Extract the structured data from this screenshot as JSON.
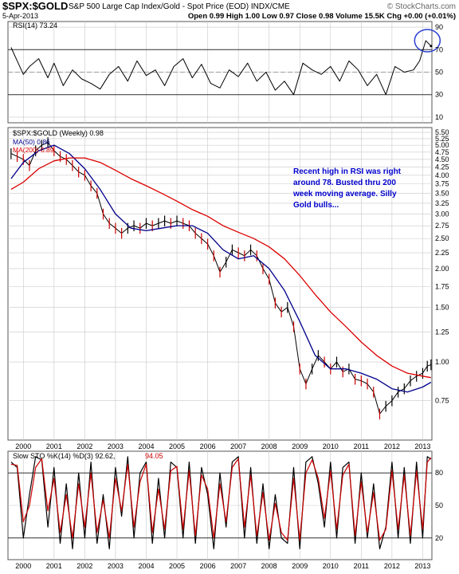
{
  "header": {
    "symbol": "$SPX:$GOLD",
    "description": "S&P 500 Large Cap Index/Gold - Spot Price (EOD) INDX/CME",
    "copyright": "© StockCharts.com",
    "date": "5-Apr-2013",
    "quote": "Open 0.99  High 1.00  Low 0.97  Close 0.98  Volume 15.5K  Chg +0.00 (+0.01%)"
  },
  "colors": {
    "price": "#000000",
    "down": "#cc0000",
    "ma50": "#00008b",
    "ma200": "#dd0000",
    "grid": "#c8c8c8",
    "panel_border": "#555555",
    "annotation": "#0000cc",
    "sto_d": "#cc0000",
    "circle": "#2a3fd0"
  },
  "chart_data": [
    {
      "type": "line",
      "legend": [
        "RSI(14) 73.24"
      ],
      "y_ticks": [
        10,
        30,
        50,
        70,
        90
      ],
      "ylim": [
        5,
        95
      ],
      "reference_lines": [
        30,
        50,
        70
      ],
      "x_range": [
        1999.5,
        2013.3
      ],
      "series": [
        {
          "name": "RSI(14)",
          "x": [
            1999.6,
            1999.8,
            2000.0,
            2000.2,
            2000.5,
            2000.8,
            2001.0,
            2001.3,
            2001.6,
            2001.9,
            2002.2,
            2002.5,
            2002.8,
            2003.1,
            2003.4,
            2003.7,
            2004.0,
            2004.3,
            2004.6,
            2004.9,
            2005.2,
            2005.5,
            2005.8,
            2006.1,
            2006.4,
            2006.7,
            2007.0,
            2007.3,
            2007.6,
            2007.9,
            2008.2,
            2008.5,
            2008.8,
            2009.1,
            2009.4,
            2009.7,
            2010.0,
            2010.3,
            2010.6,
            2010.9,
            2011.2,
            2011.5,
            2011.8,
            2012.1,
            2012.4,
            2012.7,
            2012.9,
            2013.1,
            2013.27
          ],
          "values": [
            72,
            60,
            48,
            55,
            62,
            45,
            58,
            38,
            52,
            44,
            40,
            35,
            48,
            55,
            42,
            60,
            47,
            52,
            38,
            55,
            62,
            45,
            57,
            40,
            36,
            52,
            46,
            58,
            42,
            50,
            34,
            42,
            30,
            58,
            52,
            48,
            55,
            42,
            60,
            52,
            38,
            48,
            30,
            55,
            50,
            52,
            60,
            78,
            73.24
          ]
        }
      ]
    },
    {
      "type": "line",
      "legend": [
        "$SPX:$GOLD (Weekly) 0.98",
        "MA(50) 0.86",
        "MA(200) 0.89"
      ],
      "y_scale": "log",
      "y_ticks": [
        0.75,
        1.0,
        1.25,
        1.5,
        1.75,
        2.0,
        2.25,
        2.5,
        2.75,
        3.0,
        3.25,
        3.5,
        3.75,
        4.0,
        4.25,
        4.5,
        4.75,
        5.0,
        5.25,
        5.5
      ],
      "y_tick_labels": [
        "0.75",
        "1.00",
        "1.25",
        "1.50",
        "1.75",
        "2.00",
        "2.25",
        "2.50",
        "2.75",
        "3.00",
        "3.25",
        "3.50",
        "3.75",
        "4.00",
        "4.25",
        "4.50",
        "4.75",
        "5.00",
        "5.25",
        "5.50"
      ],
      "ylim": [
        0.56,
        5.7
      ],
      "x_range": [
        1999.5,
        2013.3
      ],
      "x_ticks": [
        2000,
        2001,
        2002,
        2003,
        2004,
        2005,
        2006,
        2007,
        2008,
        2009,
        2010,
        2011,
        2012,
        2013
      ],
      "x_tick_labels": [
        "2000",
        "2001",
        "2002",
        "2003",
        "2004",
        "2005",
        "2006",
        "2007",
        "2008",
        "2009",
        "2010",
        "2011",
        "2012",
        "2013"
      ],
      "annotation": "Recent high in RSI was right around 78. Busted thru 200 week moving average. Silly Gold bulls...",
      "series": [
        {
          "name": "$SPX:$GOLD",
          "x": [
            1999.6,
            1999.8,
            2000.0,
            2000.2,
            2000.4,
            2000.6,
            2000.8,
            2001.0,
            2001.2,
            2001.4,
            2001.6,
            2001.8,
            2002.0,
            2002.2,
            2002.4,
            2002.6,
            2002.8,
            2003.0,
            2003.2,
            2003.4,
            2003.6,
            2003.8,
            2004.0,
            2004.2,
            2004.4,
            2004.6,
            2004.8,
            2005.0,
            2005.2,
            2005.4,
            2005.6,
            2005.8,
            2006.0,
            2006.2,
            2006.4,
            2006.6,
            2006.8,
            2007.0,
            2007.2,
            2007.4,
            2007.6,
            2007.8,
            2008.0,
            2008.2,
            2008.4,
            2008.6,
            2008.8,
            2009.0,
            2009.2,
            2009.4,
            2009.6,
            2009.8,
            2010.0,
            2010.2,
            2010.4,
            2010.6,
            2010.8,
            2011.0,
            2011.2,
            2011.4,
            2011.6,
            2011.8,
            2012.0,
            2012.2,
            2012.4,
            2012.6,
            2012.8,
            2013.0,
            2013.15,
            2013.27
          ],
          "values": [
            4.7,
            4.6,
            4.5,
            4.3,
            4.8,
            5.0,
            5.1,
            4.8,
            4.6,
            4.5,
            4.3,
            4.1,
            4.0,
            3.7,
            3.5,
            3.0,
            2.8,
            2.7,
            2.6,
            2.7,
            2.75,
            2.7,
            2.8,
            2.75,
            2.8,
            2.85,
            2.8,
            2.85,
            2.8,
            2.75,
            2.6,
            2.5,
            2.4,
            2.2,
            1.95,
            2.1,
            2.3,
            2.25,
            2.2,
            2.3,
            2.2,
            2.0,
            1.85,
            1.55,
            1.45,
            1.5,
            1.3,
            0.95,
            0.85,
            0.95,
            1.05,
            1.0,
            0.95,
            1.0,
            0.93,
            0.95,
            0.88,
            0.87,
            0.85,
            0.8,
            0.68,
            0.72,
            0.75,
            0.8,
            0.82,
            0.87,
            0.9,
            0.92,
            0.97,
            0.98
          ]
        },
        {
          "name": "MA(50)",
          "x": [
            1999.6,
            2000.0,
            2000.5,
            2001.0,
            2001.5,
            2002.0,
            2002.5,
            2003.0,
            2003.5,
            2004.0,
            2004.5,
            2005.0,
            2005.5,
            2006.0,
            2006.5,
            2007.0,
            2007.5,
            2008.0,
            2008.5,
            2009.0,
            2009.5,
            2010.0,
            2010.5,
            2011.0,
            2011.5,
            2012.0,
            2012.5,
            2013.0,
            2013.27
          ],
          "values": [
            3.9,
            4.4,
            4.8,
            5.0,
            4.7,
            4.2,
            3.6,
            3.0,
            2.7,
            2.65,
            2.7,
            2.75,
            2.75,
            2.6,
            2.3,
            2.15,
            2.2,
            2.0,
            1.7,
            1.35,
            1.05,
            0.95,
            0.95,
            0.92,
            0.88,
            0.82,
            0.8,
            0.83,
            0.86
          ]
        },
        {
          "name": "MA(200)",
          "x": [
            1999.6,
            2000.0,
            2000.5,
            2001.0,
            2001.5,
            2002.0,
            2002.5,
            2003.0,
            2003.5,
            2004.0,
            2004.5,
            2005.0,
            2005.5,
            2006.0,
            2006.5,
            2007.0,
            2007.5,
            2008.0,
            2008.5,
            2009.0,
            2009.5,
            2010.0,
            2010.5,
            2011.0,
            2011.5,
            2012.0,
            2012.5,
            2013.0,
            2013.27
          ],
          "values": [
            3.6,
            3.8,
            4.2,
            4.45,
            4.55,
            4.55,
            4.4,
            4.15,
            3.9,
            3.7,
            3.5,
            3.3,
            3.1,
            2.95,
            2.75,
            2.62,
            2.5,
            2.35,
            2.15,
            1.9,
            1.65,
            1.45,
            1.3,
            1.16,
            1.05,
            0.97,
            0.92,
            0.9,
            0.89
          ]
        }
      ]
    },
    {
      "type": "line",
      "legend": [
        "Slow STO %K(14) %D(3) 92.62,",
        "94.05"
      ],
      "y_ticks": [
        20,
        50,
        80
      ],
      "ylim": [
        0,
        100
      ],
      "reference_lines": [
        20,
        80
      ],
      "x_range": [
        1999.5,
        2013.3
      ],
      "x_ticks": [
        2000,
        2001,
        2002,
        2003,
        2004,
        2005,
        2006,
        2007,
        2008,
        2009,
        2010,
        2011,
        2012,
        2013
      ],
      "x_tick_labels": [
        "2000",
        "2001",
        "2002",
        "2003",
        "2004",
        "2005",
        "2006",
        "2007",
        "2008",
        "2009",
        "2010",
        "2011",
        "2012",
        "2013"
      ],
      "series": [
        {
          "name": "%K(14)",
          "x": [
            1999.6,
            1999.8,
            2000.0,
            2000.2,
            2000.4,
            2000.6,
            2000.8,
            2001.0,
            2001.2,
            2001.4,
            2001.6,
            2001.8,
            2002.0,
            2002.2,
            2002.4,
            2002.6,
            2002.8,
            2003.0,
            2003.2,
            2003.4,
            2003.6,
            2003.8,
            2004.0,
            2004.2,
            2004.4,
            2004.6,
            2004.8,
            2005.0,
            2005.2,
            2005.4,
            2005.6,
            2005.8,
            2006.0,
            2006.2,
            2006.4,
            2006.6,
            2006.8,
            2007.0,
            2007.2,
            2007.4,
            2007.6,
            2007.8,
            2008.0,
            2008.2,
            2008.4,
            2008.6,
            2008.8,
            2009.0,
            2009.2,
            2009.4,
            2009.6,
            2009.8,
            2010.0,
            2010.2,
            2010.4,
            2010.6,
            2010.8,
            2011.0,
            2011.2,
            2011.4,
            2011.6,
            2011.8,
            2012.0,
            2012.2,
            2012.4,
            2012.6,
            2012.8,
            2013.0,
            2013.15,
            2013.27
          ],
          "values": [
            90,
            85,
            20,
            60,
            95,
            92,
            30,
            85,
            15,
            70,
            10,
            80,
            20,
            90,
            15,
            60,
            10,
            85,
            40,
            95,
            20,
            80,
            90,
            15,
            75,
            20,
            90,
            85,
            20,
            90,
            15,
            85,
            60,
            10,
            80,
            30,
            90,
            95,
            20,
            85,
            15,
            70,
            10,
            60,
            20,
            15,
            85,
            10,
            90,
            95,
            70,
            30,
            90,
            20,
            85,
            90,
            15,
            80,
            20,
            70,
            10,
            30,
            90,
            20,
            85,
            15,
            90,
            20,
            95,
            92.62
          ]
        },
        {
          "name": "%D(3)",
          "x": [
            1999.6,
            1999.8,
            2000.0,
            2000.2,
            2000.4,
            2000.6,
            2000.8,
            2001.0,
            2001.2,
            2001.4,
            2001.6,
            2001.8,
            2002.0,
            2002.2,
            2002.4,
            2002.6,
            2002.8,
            2003.0,
            2003.2,
            2003.4,
            2003.6,
            2003.8,
            2004.0,
            2004.2,
            2004.4,
            2004.6,
            2004.8,
            2005.0,
            2005.2,
            2005.4,
            2005.6,
            2005.8,
            2006.0,
            2006.2,
            2006.4,
            2006.6,
            2006.8,
            2007.0,
            2007.2,
            2007.4,
            2007.6,
            2007.8,
            2008.0,
            2008.2,
            2008.4,
            2008.6,
            2008.8,
            2009.0,
            2009.2,
            2009.4,
            2009.6,
            2009.8,
            2010.0,
            2010.2,
            2010.4,
            2010.6,
            2010.8,
            2011.0,
            2011.2,
            2011.4,
            2011.6,
            2011.8,
            2012.0,
            2012.2,
            2012.4,
            2012.6,
            2012.8,
            2013.0,
            2013.15,
            2013.27
          ],
          "values": [
            88,
            87,
            35,
            50,
            85,
            93,
            45,
            75,
            25,
            60,
            20,
            70,
            30,
            80,
            25,
            55,
            20,
            75,
            45,
            88,
            30,
            72,
            88,
            25,
            65,
            28,
            82,
            86,
            28,
            82,
            22,
            78,
            65,
            20,
            70,
            35,
            85,
            93,
            30,
            78,
            22,
            62,
            18,
            52,
            25,
            18,
            75,
            18,
            80,
            92,
            75,
            38,
            82,
            28,
            78,
            88,
            22,
            72,
            25,
            62,
            18,
            28,
            82,
            28,
            78,
            22,
            82,
            28,
            90,
            94.05
          ]
        }
      ]
    }
  ]
}
